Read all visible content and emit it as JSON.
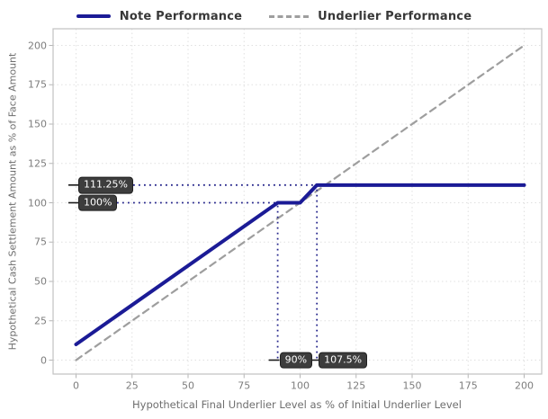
{
  "legend": {
    "items": [
      {
        "label": "Note Performance"
      },
      {
        "label": "Underlier Performance"
      }
    ]
  },
  "chart_data": {
    "type": "line",
    "title": "",
    "xlabel": "Hypothetical Final Underlier Level as % of Initial Underlier Level",
    "ylabel": "Hypothetical Cash Settlement Amount as % of Face Amount",
    "xlim": [
      0,
      200
    ],
    "ylim": [
      0,
      200
    ],
    "xticks": [
      0,
      25,
      50,
      75,
      100,
      125,
      150,
      175,
      200
    ],
    "yticks": [
      0,
      25,
      50,
      75,
      100,
      125,
      150,
      175,
      200
    ],
    "grid": "dotted",
    "legend_position": "top-center",
    "series": [
      {
        "name": "Note Performance",
        "style": "solid",
        "color": "#1b1b96",
        "width": 4,
        "points": [
          [
            0,
            10
          ],
          [
            90,
            100
          ],
          [
            100,
            100
          ],
          [
            107.5,
            111.25
          ],
          [
            200,
            111.25
          ]
        ]
      },
      {
        "name": "Underlier Performance",
        "style": "dashed",
        "color": "#9e9e9e",
        "width": 2.2,
        "points": [
          [
            0,
            0
          ],
          [
            200,
            200
          ]
        ]
      }
    ],
    "annotations": [
      {
        "text": "111.25%",
        "axis": "y",
        "value": 111.25,
        "to": 107.5
      },
      {
        "text": "100%",
        "axis": "y",
        "value": 100,
        "to": 90
      },
      {
        "text": "90%",
        "axis": "x",
        "value": 90,
        "to": 100
      },
      {
        "text": "107.5%",
        "axis": "x",
        "value": 107.5,
        "to": 111.25
      }
    ],
    "annotation_style": {
      "box_bg": "#3d3d3d",
      "box_text": "#ffffff",
      "dotted_line_color": "#26268c",
      "leader_dash_color": "#1a1a1a"
    }
  }
}
